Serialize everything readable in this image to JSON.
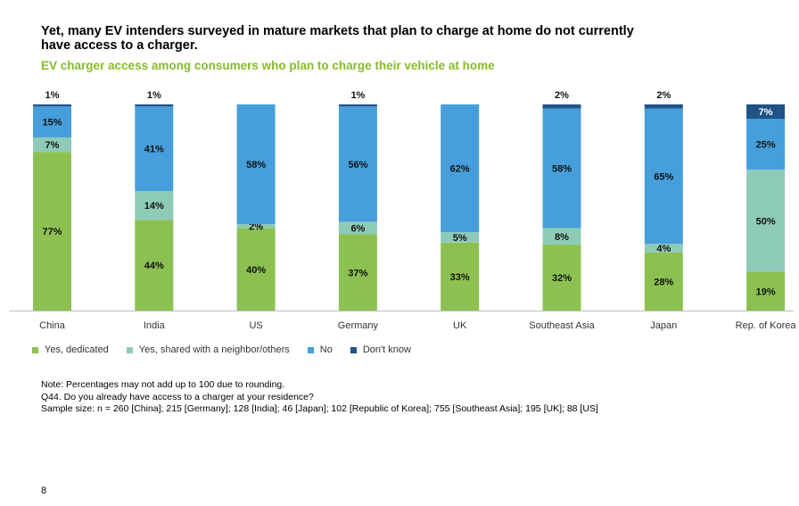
{
  "page": {
    "title": "Yet, many EV intenders surveyed in mature markets that plan to charge at home do not currently have access to a charger.",
    "subtitle": "EV charger access among consumers who plan to charge their vehicle at home",
    "notes": [
      "Note: Percentages may not add up to 100 due to rounding.",
      "Q44. Do you already have access to a charger at your residence?",
      "Sample size: n = 260 [China]; 215 [Germany]; 128 [India]; 46 [Japan]; 102 [Republic of Korea]; 755 [Southeast Asia]; 195 [UK]; 88 [US]"
    ],
    "page_number": "8"
  },
  "colors": {
    "yes_dedicated": "#8cc152",
    "yes_shared": "#8ecab8",
    "no": "#469fda",
    "dont_know": "#1f5286",
    "subtitle": "#86bc25"
  },
  "chart_data": {
    "type": "bar",
    "stacked": true,
    "title": "EV charger access among consumers who plan to charge their vehicle at home",
    "categories": [
      "China",
      "India",
      "US",
      "Germany",
      "UK",
      "Southeast Asia",
      "Japan",
      "Rep. of Korea"
    ],
    "series": [
      {
        "name": "Yes, dedicated",
        "values": [
          77,
          44,
          40,
          37,
          33,
          32,
          28,
          19
        ]
      },
      {
        "name": "Yes, shared with a neighbor/others",
        "values": [
          7,
          14,
          2,
          6,
          5,
          8,
          4,
          50
        ]
      },
      {
        "name": "No",
        "values": [
          15,
          41,
          58,
          56,
          62,
          58,
          65,
          25
        ]
      },
      {
        "name": "Don't know",
        "values": [
          1,
          1,
          0,
          1,
          0,
          2,
          2,
          7
        ]
      }
    ],
    "value_labels": [
      [
        "77%",
        "7%",
        "15%",
        "1%"
      ],
      [
        "44%",
        "14%",
        "41%",
        "1%"
      ],
      [
        "40%",
        "2%",
        "58%",
        null
      ],
      [
        "37%",
        "6%",
        "56%",
        "1%"
      ],
      [
        "33%",
        "5%",
        "62%",
        null
      ],
      [
        "32%",
        "8%",
        "58%",
        "2%"
      ],
      [
        "28%",
        "4%",
        "65%",
        "2%"
      ],
      [
        "19%",
        "50%",
        "25%",
        "7%"
      ]
    ],
    "legend": [
      "Yes, dedicated",
      "Yes, shared with a neighbor/others",
      "No",
      "Don't know"
    ],
    "legend_position": "bottom-left",
    "ylim": [
      0,
      100
    ],
    "xlabel": "",
    "ylabel": "",
    "grid": false
  }
}
